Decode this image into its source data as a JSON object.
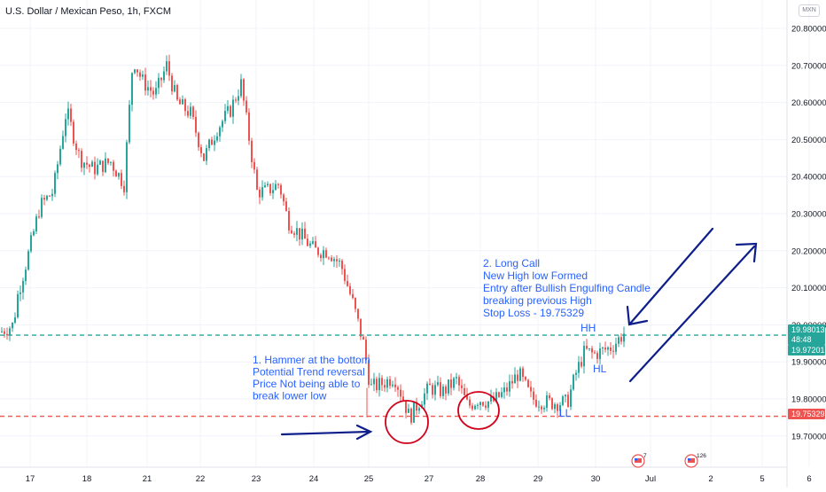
{
  "header": {
    "symbol_title": "U.S. Dollar / Mexican Peso, 1h, FXCM",
    "currency_badge": "MXN"
  },
  "colors": {
    "up": "#26a69a",
    "down": "#ef5350",
    "annotation": "#2962ff",
    "marker": "#0d1e8a",
    "circle": "#d0021b",
    "level_green": "#26a69a",
    "level_red": "#ef5350"
  },
  "chart_data": {
    "type": "candlestick",
    "title": "U.S. Dollar / Mexican Peso, 1h, FXCM",
    "ylim": [
      19.645,
      20.835
    ],
    "y_ticks": [
      "20.80000",
      "20.70000",
      "20.60000",
      "20.50000",
      "20.40000",
      "20.30000",
      "20.20000",
      "20.10000",
      "20.00000",
      "19.90000",
      "19.80000",
      "19.70000"
    ],
    "x_ticks": [
      "17",
      "18",
      "21",
      "22",
      "23",
      "24",
      "25",
      "27",
      "28",
      "29",
      "30",
      "Jul",
      "2",
      "5",
      "6"
    ],
    "grid": true,
    "price_levels": [
      {
        "value": 19.97201,
        "label": "19.97201",
        "style": "green-dashed"
      },
      {
        "value": 19.75329,
        "label": "19.75329",
        "style": "red-dashed"
      }
    ],
    "price_tags": {
      "last_price": "19.98013",
      "countdown": "48:48",
      "line_price": "19.97201",
      "stop_price": "19.75329"
    },
    "candles_segments": [
      [
        0,
        19.98
      ],
      [
        15,
        20.0
      ],
      [
        20,
        20.08
      ],
      [
        33,
        20.2
      ],
      [
        45,
        20.32
      ],
      [
        60,
        20.36
      ],
      [
        75,
        20.58
      ],
      [
        90,
        20.45
      ],
      [
        105,
        20.42
      ],
      [
        125,
        20.44
      ],
      [
        140,
        20.38
      ],
      [
        150,
        20.72
      ],
      [
        160,
        20.66
      ],
      [
        175,
        20.62
      ],
      [
        188,
        20.7
      ],
      [
        200,
        20.6
      ],
      [
        215,
        20.57
      ],
      [
        230,
        20.45
      ],
      [
        245,
        20.53
      ],
      [
        260,
        20.58
      ],
      [
        272,
        20.65
      ],
      [
        280,
        20.52
      ],
      [
        290,
        20.36
      ],
      [
        300,
        20.36
      ],
      [
        315,
        20.38
      ],
      [
        325,
        20.28
      ],
      [
        340,
        20.24
      ],
      [
        355,
        20.2
      ],
      [
        370,
        20.2
      ],
      [
        385,
        20.16
      ],
      [
        398,
        20.06
      ],
      [
        410,
        19.95
      ],
      [
        418,
        19.83
      ],
      [
        430,
        19.84
      ],
      [
        445,
        19.86
      ],
      [
        455,
        19.8
      ],
      [
        462,
        19.75
      ],
      [
        475,
        19.8
      ],
      [
        485,
        19.83
      ],
      [
        500,
        19.82
      ],
      [
        515,
        19.85
      ],
      [
        528,
        19.78
      ],
      [
        540,
        19.8
      ],
      [
        555,
        19.79
      ],
      [
        570,
        19.82
      ],
      [
        585,
        19.87
      ],
      [
        600,
        19.8
      ],
      [
        620,
        19.79
      ],
      [
        640,
        19.79
      ],
      [
        650,
        19.87
      ],
      [
        660,
        19.93
      ],
      [
        670,
        19.92
      ],
      [
        690,
        19.94
      ],
      [
        705,
        19.98
      ]
    ],
    "annotations": [
      {
        "lines": [
          "2. Long Call",
          "New High low Formed",
          "Entry after Bullish Engulfing Candle",
          "breaking previous High",
          "Stop Loss - 19.75329"
        ]
      },
      {
        "lines": [
          "1. Hammer at the bottom",
          "Potential Trend reversal",
          "Price Not being able to",
          "break lower low"
        ]
      },
      {
        "labels": [
          "HH",
          "HL",
          "LL"
        ]
      }
    ],
    "event_badges": [
      "7",
      "126"
    ]
  }
}
